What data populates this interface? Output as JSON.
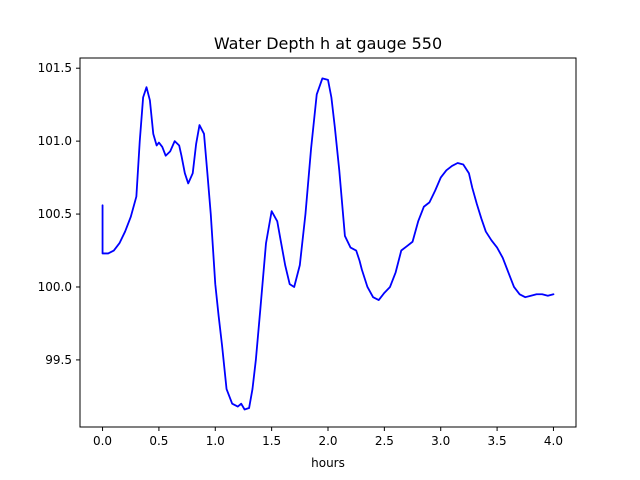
{
  "chart_data": {
    "type": "line",
    "title": "Water Depth h at gauge 550",
    "xlabel": "hours",
    "ylabel": "",
    "xlim": [
      -0.2,
      4.2
    ],
    "ylim": [
      99.04,
      101.57
    ],
    "xticks": [
      0.0,
      0.5,
      1.0,
      1.5,
      2.0,
      2.5,
      3.0,
      3.5,
      4.0
    ],
    "xtick_labels": [
      "0.0",
      "0.5",
      "1.0",
      "1.5",
      "2.0",
      "2.5",
      "3.0",
      "3.5",
      "4.0"
    ],
    "yticks": [
      99.5,
      100.0,
      100.5,
      101.0,
      101.5
    ],
    "ytick_labels": [
      "99.5",
      "100.0",
      "100.5",
      "101.0",
      "101.5"
    ],
    "grid": false,
    "series": [
      {
        "color": "#0000ff",
        "x": [
          0.0,
          0.0,
          0.05,
          0.1,
          0.15,
          0.2,
          0.25,
          0.3,
          0.33,
          0.36,
          0.39,
          0.42,
          0.45,
          0.48,
          0.5,
          0.53,
          0.56,
          0.6,
          0.64,
          0.68,
          0.7,
          0.73,
          0.76,
          0.8,
          0.83,
          0.86,
          0.9,
          0.93,
          0.96,
          1.0,
          1.03,
          1.06,
          1.1,
          1.15,
          1.2,
          1.23,
          1.26,
          1.3,
          1.33,
          1.36,
          1.4,
          1.45,
          1.5,
          1.55,
          1.58,
          1.62,
          1.66,
          1.7,
          1.75,
          1.8,
          1.85,
          1.9,
          1.95,
          2.0,
          2.03,
          2.06,
          2.1,
          2.15,
          2.2,
          2.25,
          2.28,
          2.3,
          2.35,
          2.4,
          2.45,
          2.5,
          2.55,
          2.6,
          2.65,
          2.7,
          2.75,
          2.8,
          2.85,
          2.9,
          2.95,
          3.0,
          3.05,
          3.1,
          3.15,
          3.2,
          3.25,
          3.28,
          3.32,
          3.36,
          3.4,
          3.45,
          3.5,
          3.55,
          3.6,
          3.65,
          3.7,
          3.75,
          3.8,
          3.85,
          3.9,
          3.95,
          4.0
        ],
        "y": [
          100.56,
          100.23,
          100.23,
          100.25,
          100.3,
          100.38,
          100.48,
          100.62,
          101.0,
          101.3,
          101.37,
          101.28,
          101.05,
          100.97,
          100.99,
          100.96,
          100.9,
          100.93,
          101.0,
          100.97,
          100.9,
          100.78,
          100.71,
          100.78,
          100.98,
          101.11,
          101.05,
          100.78,
          100.5,
          100.02,
          99.8,
          99.6,
          99.3,
          99.2,
          99.18,
          99.2,
          99.16,
          99.17,
          99.3,
          99.5,
          99.85,
          100.3,
          100.52,
          100.45,
          100.32,
          100.15,
          100.02,
          100.0,
          100.15,
          100.5,
          100.95,
          101.32,
          101.43,
          101.42,
          101.3,
          101.1,
          100.8,
          100.35,
          100.27,
          100.25,
          100.18,
          100.12,
          100.0,
          99.93,
          99.91,
          99.96,
          100.0,
          100.1,
          100.25,
          100.28,
          100.31,
          100.45,
          100.55,
          100.58,
          100.66,
          100.75,
          100.8,
          100.83,
          100.85,
          100.84,
          100.78,
          100.68,
          100.57,
          100.47,
          100.38,
          100.32,
          100.27,
          100.2,
          100.1,
          100.0,
          99.95,
          99.93,
          99.94,
          99.95,
          99.95,
          99.94,
          99.95
        ]
      }
    ]
  }
}
